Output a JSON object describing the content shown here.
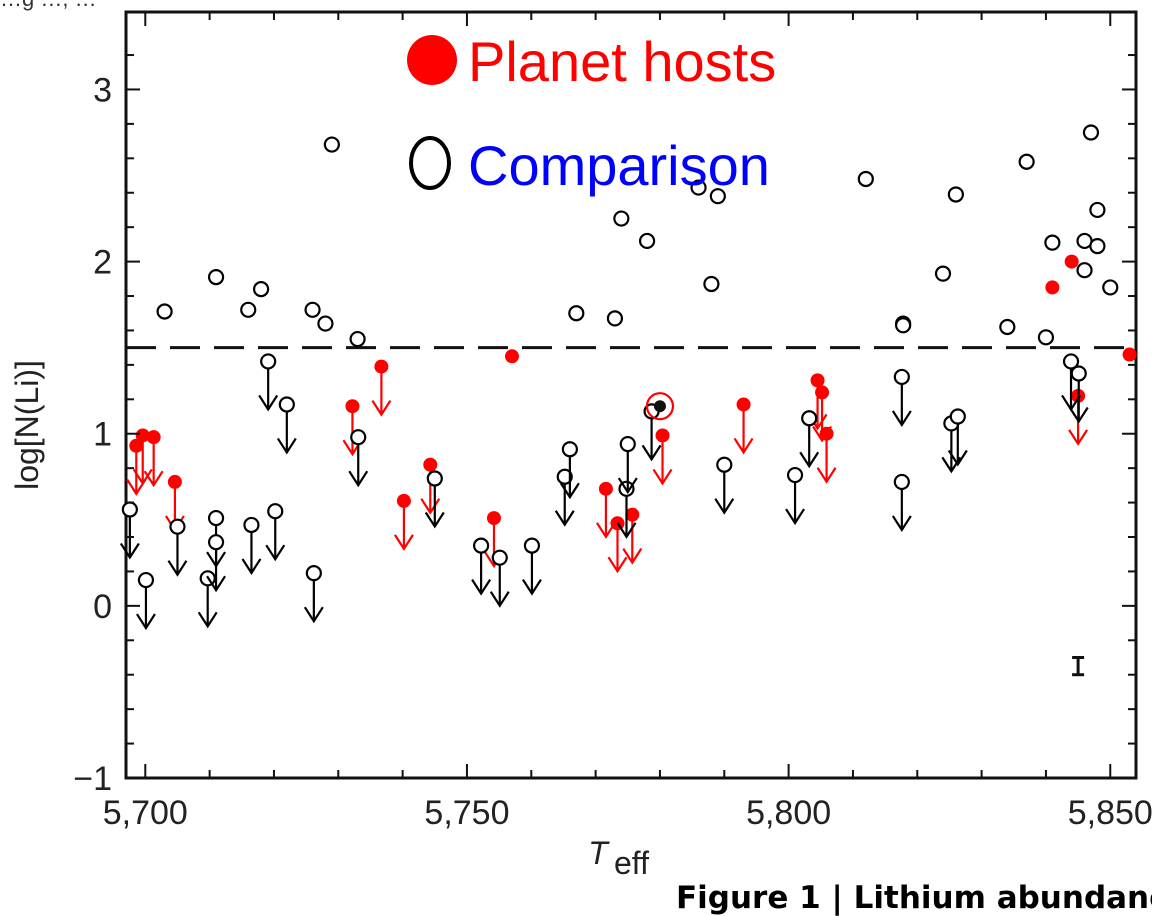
{
  "chart_data": {
    "type": "scatter",
    "xlabel": "T",
    "xlabel_sub": "eff",
    "ylabel": "log[N(Li)]",
    "xlim": [
      5697,
      5854
    ],
    "ylim": [
      -1,
      3.45
    ],
    "xticks": [
      5700,
      5750,
      5800,
      5850
    ],
    "xtick_labels": [
      "5,700",
      "5,750",
      "5,800",
      "5,850"
    ],
    "yticks": [
      -1,
      0,
      1,
      2,
      3
    ],
    "ytick_labels": [
      "−1",
      "0",
      "1",
      "2",
      "3"
    ],
    "grid": false,
    "legend_position": "top-center",
    "reference_line": {
      "y": 1.5,
      "style": "dashed"
    },
    "error_bar": {
      "x": 5845,
      "y": -0.35,
      "err": 0.05
    },
    "colors": {
      "planet_hosts": "#ff0000",
      "comparison": "#000000",
      "comparison_label": "#0000ff",
      "sun": "#111111"
    },
    "series": [
      {
        "name": "Planet hosts",
        "marker": "filled",
        "detections": [
          [
            5757,
            1.45
          ],
          [
            5841,
            1.85
          ],
          [
            5844,
            2.0
          ],
          [
            5853,
            1.46
          ]
        ],
        "upper_limits": [
          [
            5698.6,
            0.93
          ],
          [
            5699.6,
            0.99
          ],
          [
            5701.3,
            0.98
          ],
          [
            5704.6,
            0.72
          ],
          [
            5732.2,
            1.16
          ],
          [
            5736.7,
            1.39
          ],
          [
            5740.2,
            0.61
          ],
          [
            5744.3,
            0.82
          ],
          [
            5754.2,
            0.51
          ],
          [
            5771.6,
            0.68
          ],
          [
            5773.4,
            0.48
          ],
          [
            5775.7,
            0.53
          ],
          [
            5780.4,
            0.99
          ],
          [
            5793.0,
            1.17
          ],
          [
            5804.5,
            1.31
          ],
          [
            5805.2,
            1.24
          ],
          [
            5805.9,
            1.0
          ],
          [
            5845.0,
            1.22
          ]
        ]
      },
      {
        "name": "Comparison",
        "marker": "open",
        "detections": [
          [
            5703,
            1.71
          ],
          [
            5711,
            1.91
          ],
          [
            5716,
            1.72
          ],
          [
            5718,
            1.84
          ],
          [
            5726,
            1.72
          ],
          [
            5728,
            1.64
          ],
          [
            5729,
            2.68
          ],
          [
            5733,
            1.55
          ],
          [
            5767,
            1.7
          ],
          [
            5773,
            1.67
          ],
          [
            5774,
            2.25
          ],
          [
            5778,
            2.12
          ],
          [
            5786,
            2.43
          ],
          [
            5788,
            1.87
          ],
          [
            5789,
            2.38
          ],
          [
            5812,
            2.48
          ],
          [
            5817.8,
            1.64
          ],
          [
            5817.8,
            1.63
          ],
          [
            5824,
            1.93
          ],
          [
            5826,
            2.39
          ],
          [
            5834,
            1.62
          ],
          [
            5837,
            2.58
          ],
          [
            5840,
            1.56
          ],
          [
            5841,
            2.11
          ],
          [
            5846,
            1.95
          ],
          [
            5846,
            2.12
          ],
          [
            5847,
            2.75
          ],
          [
            5848,
            2.09
          ],
          [
            5848,
            2.3
          ],
          [
            5850,
            1.85
          ]
        ],
        "upper_limits": [
          [
            5697.6,
            0.56
          ],
          [
            5700.1,
            0.15
          ],
          [
            5705.0,
            0.46
          ],
          [
            5709.7,
            0.16
          ],
          [
            5711.0,
            0.51
          ],
          [
            5711.0,
            0.37
          ],
          [
            5716.5,
            0.47
          ],
          [
            5719.1,
            1.42
          ],
          [
            5720.2,
            0.55
          ],
          [
            5722.0,
            1.17
          ],
          [
            5726.2,
            0.19
          ],
          [
            5733.1,
            0.98
          ],
          [
            5745.0,
            0.74
          ],
          [
            5752.2,
            0.35
          ],
          [
            5755.1,
            0.28
          ],
          [
            5760.1,
            0.35
          ],
          [
            5765.2,
            0.75
          ],
          [
            5766.0,
            0.91
          ],
          [
            5774.8,
            0.68
          ],
          [
            5775.0,
            0.94
          ],
          [
            5778.7,
            1.13
          ],
          [
            5790.0,
            0.82
          ],
          [
            5801.0,
            0.76
          ],
          [
            5803.2,
            1.09
          ],
          [
            5817.6,
            1.33
          ],
          [
            5817.6,
            0.72
          ],
          [
            5825.3,
            1.06
          ],
          [
            5826.3,
            1.1
          ],
          [
            5843.9,
            1.42
          ],
          [
            5845.1,
            1.35
          ]
        ]
      },
      {
        "name": "Sun",
        "marker": "sun-symbol",
        "detections": [
          [
            5780,
            1.16
          ]
        ]
      }
    ]
  },
  "legend": {
    "planet_hosts_label": "Planet hosts",
    "comparison_label": "Comparison"
  },
  "caption": "Figure 1 | Lithium abundanc",
  "clipped_top_text": "…g …, …"
}
